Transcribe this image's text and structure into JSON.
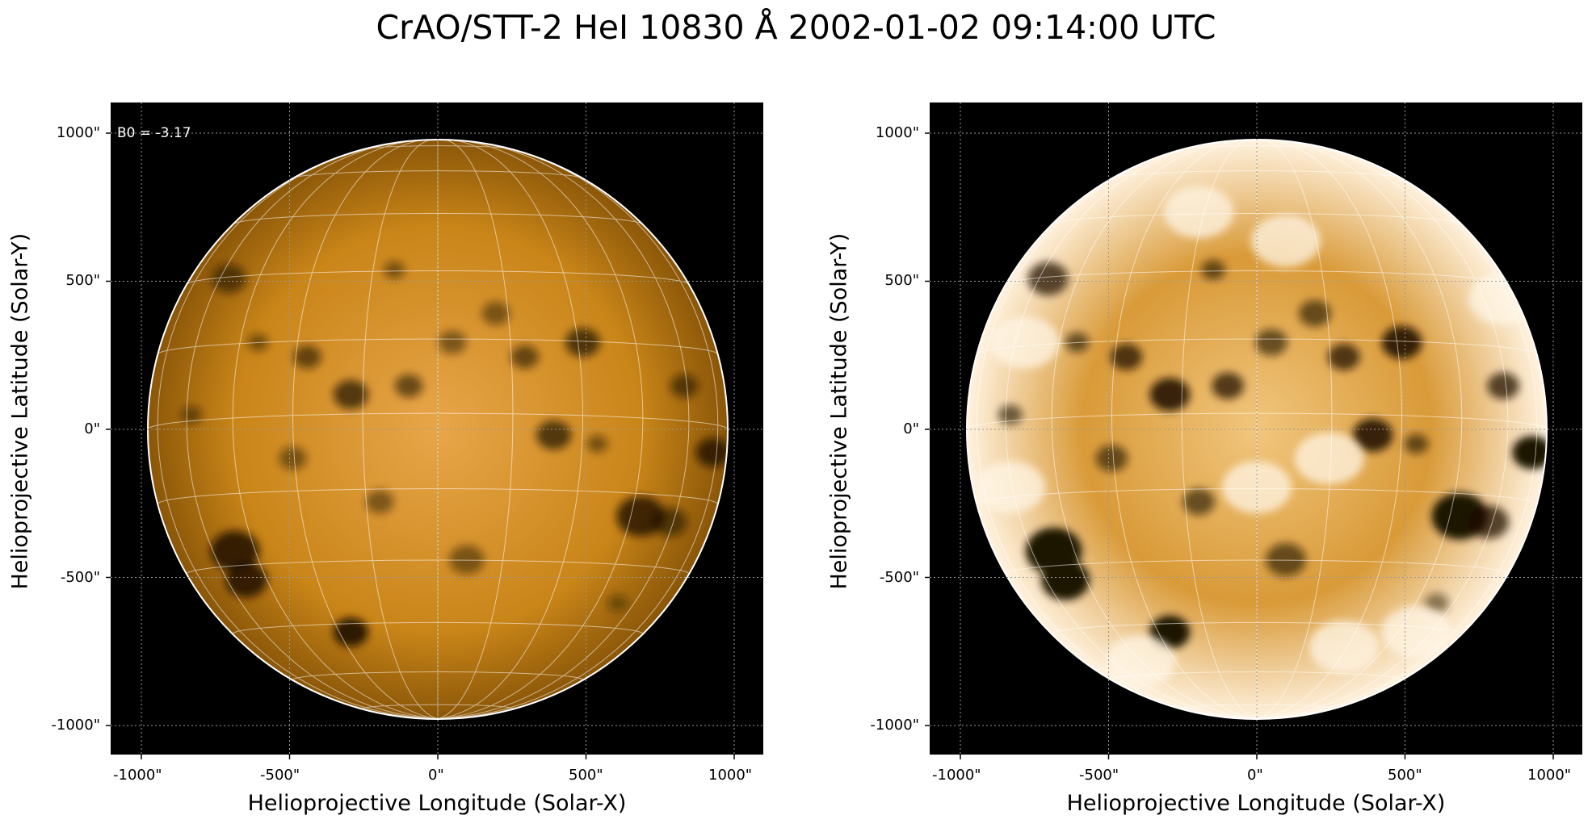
{
  "figure": {
    "title": "CrAO/STT-2 HeI 10830 Å 2002-01-02 09:14:00 UTC",
    "panels": [
      {
        "id": "left",
        "annotation": "B0 = -3.17",
        "xlabel": "Helioprojective Longitude (Solar-X)",
        "ylabel": "Helioprojective Latitude (Solar-Y)",
        "xticks": [
          "-1000\"",
          "-500\"",
          "0\"",
          "500\"",
          "1000\""
        ],
        "yticks": [
          "1000\"",
          "500\"",
          "0\"",
          "-500\"",
          "-1000\""
        ],
        "style": "normal"
      },
      {
        "id": "right",
        "annotation": "",
        "xlabel": "Helioprojective Longitude (Solar-X)",
        "ylabel": "Helioprojective Latitude (Solar-Y)",
        "xticks": [
          "-1000\"",
          "-500\"",
          "0\"",
          "500\"",
          "1000\""
        ],
        "yticks": [
          "1000\"",
          "500\"",
          "0\"",
          "-500\"",
          "-1000\""
        ],
        "style": "enhanced"
      }
    ],
    "colors": {
      "background": "#000000",
      "disk_center": "#e8a64a",
      "disk_mid": "#c98518",
      "disk_edge": "#8a5608",
      "enhanced_center": "#f1c67e",
      "enhanced_mid": "#d99a38",
      "enhanced_edge": "#fff2df",
      "grid": "#ffffff",
      "feature": "#1f1204"
    }
  }
}
